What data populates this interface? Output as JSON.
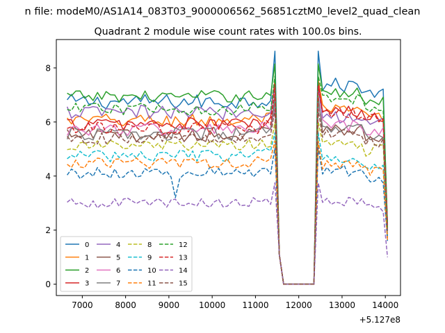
{
  "figure": {
    "suptitle": "n file: modeM0/AS1A14_083T03_9000006562_56851cztM0_level2_quad_clean",
    "offset_label": "+5.127e8"
  },
  "chart_data": {
    "type": "line",
    "title": "Quadrant 2 module wise count rates with 100.0s bins.",
    "xlabel": "",
    "ylabel": "",
    "x_offset": 512700000,
    "xlim": [
      6400,
      14350
    ],
    "ylim": [
      -0.42,
      9.05
    ],
    "xticks": [
      7000,
      8000,
      9000,
      10000,
      11000,
      12000,
      13000,
      14000
    ],
    "yticks": [
      0,
      2,
      4,
      6,
      8
    ],
    "grid": false,
    "legend": {
      "placement": "lower-left",
      "ncol": 4
    },
    "bins": {
      "x_start": 6650,
      "x_step": 100,
      "n": 75,
      "lead_count": 48,
      "lead_end_step": 49,
      "gap_start_step": 50,
      "gap_end_step": 57,
      "tail_start_step": 58,
      "tail_count": 11,
      "tail_end_step": 74
    },
    "series": [
      {
        "name": "0",
        "color": "#1f77b4",
        "dash": "solid",
        "base": 6.75,
        "amp": 0.28,
        "peak": 8.62,
        "tail": 7.35,
        "endval": 2.1,
        "outlier": null
      },
      {
        "name": "1",
        "color": "#ff7f0e",
        "dash": "solid",
        "base": 6.05,
        "amp": 0.26,
        "peak": 7.55,
        "tail": 6.4,
        "endval": 1.7,
        "outlier": null
      },
      {
        "name": "2",
        "color": "#2ca02c",
        "dash": "solid",
        "base": 6.95,
        "amp": 0.22,
        "peak": 8.15,
        "tail": 7.05,
        "endval": 2.2,
        "outlier": null
      },
      {
        "name": "3",
        "color": "#d62728",
        "dash": "solid",
        "base": 5.92,
        "amp": 0.25,
        "peak": 7.45,
        "tail": 6.35,
        "endval": 2.2,
        "outlier": null
      },
      {
        "name": "4",
        "color": "#9467bd",
        "dash": "solid",
        "base": 6.35,
        "amp": 0.27,
        "peak": 7.3,
        "tail": 6.2,
        "endval": 2.0,
        "outlier": null
      },
      {
        "name": "5",
        "color": "#8c564b",
        "dash": "solid",
        "base": 5.5,
        "amp": 0.24,
        "peak": 6.95,
        "tail": 5.75,
        "endval": 2.0,
        "outlier": null
      },
      {
        "name": "6",
        "color": "#e377c2",
        "dash": "solid",
        "base": 5.72,
        "amp": 0.24,
        "peak": 6.55,
        "tail": 5.85,
        "endval": 2.0,
        "outlier": null
      },
      {
        "name": "7",
        "color": "#7f7f7f",
        "dash": "solid",
        "base": 5.55,
        "amp": 0.24,
        "peak": 6.8,
        "tail": 5.7,
        "endval": 2.0,
        "outlier": null
      },
      {
        "name": "8",
        "color": "#bcbd22",
        "dash": "dashed",
        "base": 5.12,
        "amp": 0.22,
        "peak": 6.0,
        "tail": 5.2,
        "endval": 1.8,
        "outlier": null
      },
      {
        "name": "9",
        "color": "#17becf",
        "dash": "dashed",
        "base": 4.75,
        "amp": 0.22,
        "peak": 5.6,
        "tail": 4.65,
        "endval": 1.8,
        "outlier": null
      },
      {
        "name": "10",
        "color": "#1f77b4",
        "dash": "dashed",
        "base": 4.12,
        "amp": 0.22,
        "peak": 5.05,
        "tail": 4.2,
        "endval": 1.6,
        "outlier": [
          25,
          3.2
        ]
      },
      {
        "name": "11",
        "color": "#ff7f0e",
        "dash": "dashed",
        "base": 4.48,
        "amp": 0.2,
        "peak": 5.3,
        "tail": 4.45,
        "endval": 1.6,
        "outlier": null
      },
      {
        "name": "12",
        "color": "#2ca02c",
        "dash": "dashed",
        "base": 6.48,
        "amp": 0.22,
        "peak": 7.7,
        "tail": 6.85,
        "endval": 2.1,
        "outlier": null
      },
      {
        "name": "13",
        "color": "#d62728",
        "dash": "dashed",
        "base": 5.75,
        "amp": 0.24,
        "peak": 7.3,
        "tail": 6.3,
        "endval": 2.1,
        "outlier": null
      },
      {
        "name": "14",
        "color": "#9467bd",
        "dash": "dashed",
        "base": 3.0,
        "amp": 0.18,
        "peak": 3.75,
        "tail": 3.05,
        "endval": 1.0,
        "outlier": null
      },
      {
        "name": "15",
        "color": "#8c564b",
        "dash": "dashed",
        "base": 5.4,
        "amp": 0.22,
        "peak": 6.45,
        "tail": 5.55,
        "endval": 1.9,
        "outlier": null
      }
    ]
  }
}
